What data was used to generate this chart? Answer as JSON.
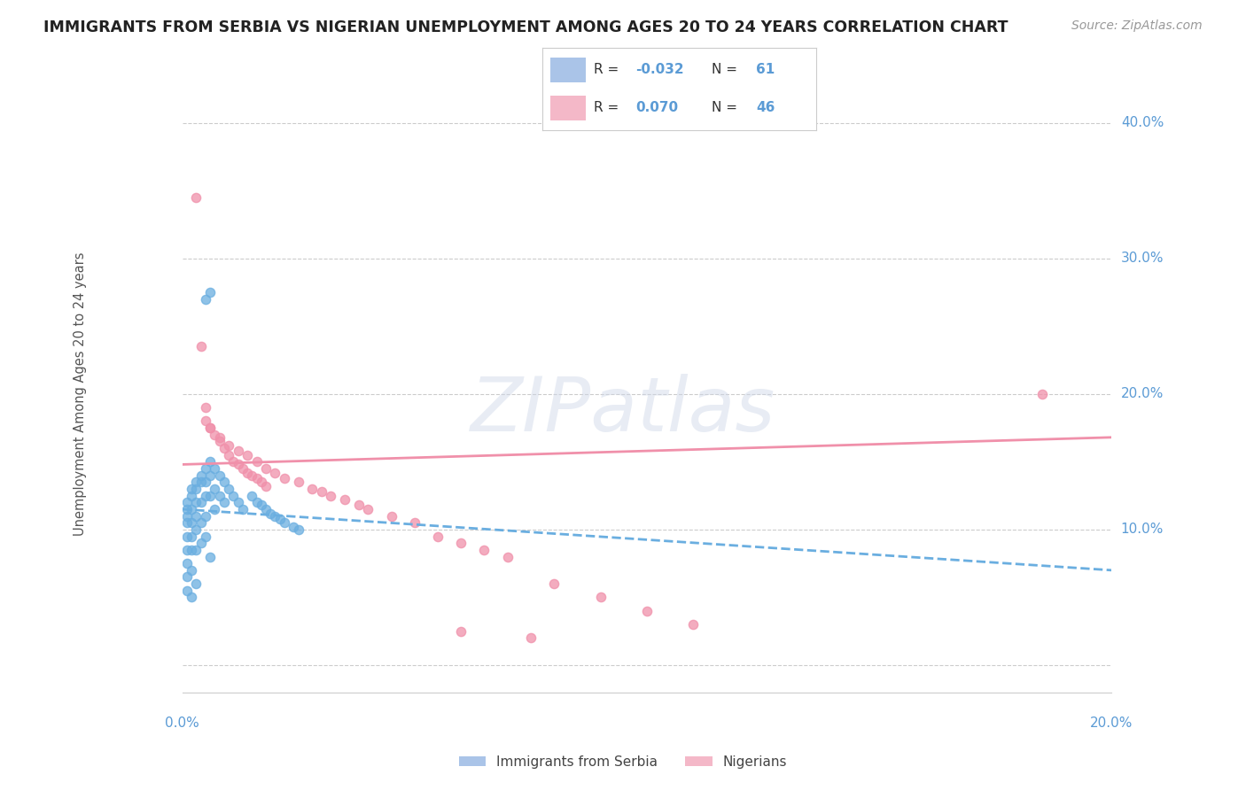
{
  "title": "IMMIGRANTS FROM SERBIA VS NIGERIAN UNEMPLOYMENT AMONG AGES 20 TO 24 YEARS CORRELATION CHART",
  "source": "Source: ZipAtlas.com",
  "ylabel": "Unemployment Among Ages 20 to 24 years",
  "xlim": [
    0.0,
    0.2
  ],
  "ylim": [
    -0.02,
    0.44
  ],
  "ytick_vals": [
    0.0,
    0.1,
    0.2,
    0.3,
    0.4
  ],
  "ytick_labels": [
    "",
    "10.0%",
    "20.0%",
    "30.0%",
    "40.0%"
  ],
  "serbia_color": "#6aaee0",
  "nigeria_color": "#f090aa",
  "serbia_legend_color": "#aac4e8",
  "nigeria_legend_color": "#f4b8c8",
  "serbia_line_color": "#6aaee0",
  "nigeria_line_color": "#f090aa",
  "serbia_R_text": "-0.032",
  "serbia_N_text": "61",
  "nigeria_R_text": "0.070",
  "nigeria_N_text": "46",
  "serbia_trend": [
    0.115,
    0.07
  ],
  "nigeria_trend": [
    0.148,
    0.168
  ],
  "watermark": "ZIPatlas",
  "legend_labels": [
    "Immigrants from Serbia",
    "Nigerians"
  ],
  "serbia_x": [
    0.001,
    0.001,
    0.001,
    0.001,
    0.001,
    0.001,
    0.001,
    0.001,
    0.001,
    0.002,
    0.002,
    0.002,
    0.002,
    0.002,
    0.002,
    0.002,
    0.002,
    0.003,
    0.003,
    0.003,
    0.003,
    0.003,
    0.003,
    0.003,
    0.004,
    0.004,
    0.004,
    0.004,
    0.004,
    0.005,
    0.005,
    0.005,
    0.005,
    0.005,
    0.006,
    0.006,
    0.006,
    0.006,
    0.007,
    0.007,
    0.007,
    0.008,
    0.008,
    0.009,
    0.009,
    0.01,
    0.011,
    0.012,
    0.013,
    0.015,
    0.016,
    0.017,
    0.018,
    0.019,
    0.02,
    0.021,
    0.022,
    0.024,
    0.025,
    0.005,
    0.006
  ],
  "serbia_y": [
    0.12,
    0.115,
    0.11,
    0.105,
    0.095,
    0.085,
    0.075,
    0.065,
    0.055,
    0.13,
    0.125,
    0.115,
    0.105,
    0.095,
    0.085,
    0.07,
    0.05,
    0.135,
    0.13,
    0.12,
    0.11,
    0.1,
    0.085,
    0.06,
    0.14,
    0.135,
    0.12,
    0.105,
    0.09,
    0.145,
    0.135,
    0.125,
    0.11,
    0.095,
    0.15,
    0.14,
    0.125,
    0.08,
    0.145,
    0.13,
    0.115,
    0.14,
    0.125,
    0.135,
    0.12,
    0.13,
    0.125,
    0.12,
    0.115,
    0.125,
    0.12,
    0.118,
    0.115,
    0.112,
    0.11,
    0.108,
    0.105,
    0.102,
    0.1,
    0.27,
    0.275
  ],
  "nigeria_x": [
    0.003,
    0.004,
    0.005,
    0.006,
    0.007,
    0.008,
    0.009,
    0.01,
    0.011,
    0.012,
    0.013,
    0.014,
    0.015,
    0.016,
    0.017,
    0.018,
    0.005,
    0.006,
    0.008,
    0.01,
    0.012,
    0.014,
    0.016,
    0.018,
    0.02,
    0.022,
    0.025,
    0.028,
    0.03,
    0.032,
    0.035,
    0.038,
    0.04,
    0.045,
    0.05,
    0.055,
    0.06,
    0.065,
    0.07,
    0.08,
    0.09,
    0.1,
    0.11,
    0.185,
    0.06,
    0.075
  ],
  "nigeria_y": [
    0.345,
    0.235,
    0.19,
    0.175,
    0.17,
    0.165,
    0.16,
    0.155,
    0.15,
    0.148,
    0.145,
    0.142,
    0.14,
    0.138,
    0.135,
    0.132,
    0.18,
    0.175,
    0.168,
    0.162,
    0.158,
    0.155,
    0.15,
    0.145,
    0.142,
    0.138,
    0.135,
    0.13,
    0.128,
    0.125,
    0.122,
    0.118,
    0.115,
    0.11,
    0.105,
    0.095,
    0.09,
    0.085,
    0.08,
    0.06,
    0.05,
    0.04,
    0.03,
    0.2,
    0.025,
    0.02
  ]
}
